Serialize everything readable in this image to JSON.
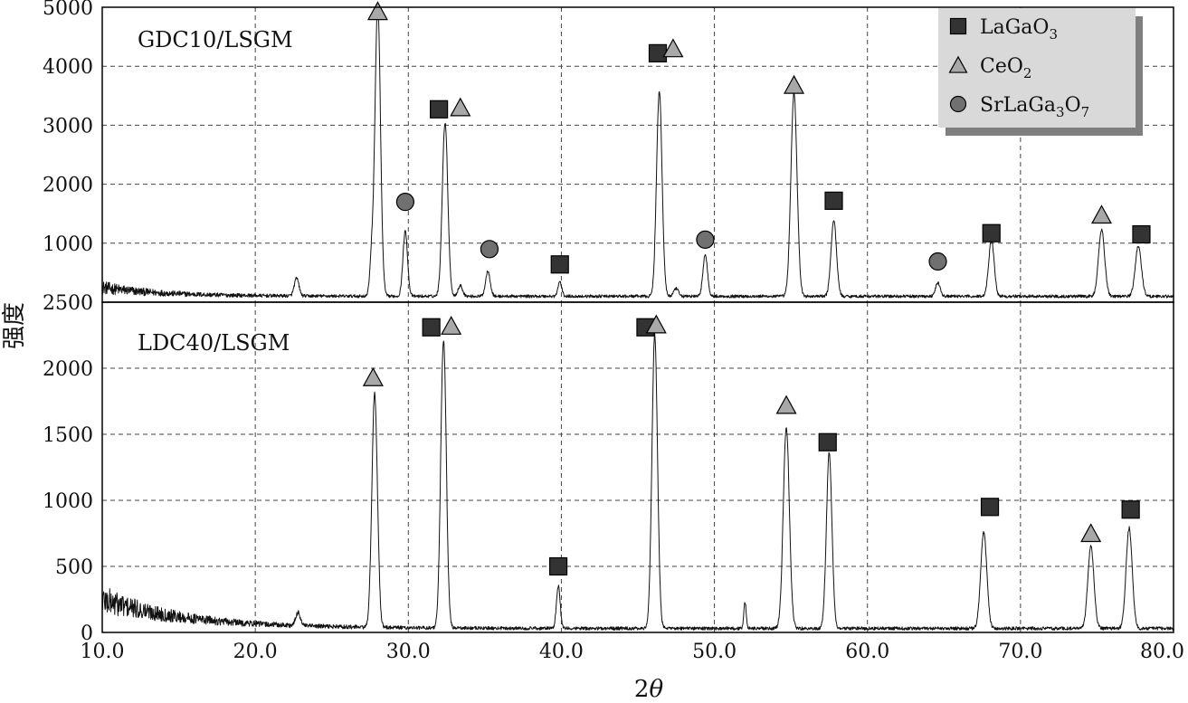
{
  "chart_data": [
    {
      "type": "line",
      "panel": "top",
      "title": "GDC10/LSGM",
      "ylabel": "强度",
      "xlabel": "2θ",
      "xlim": [
        10.0,
        80.0
      ],
      "ylim": [
        0,
        5000
      ],
      "yticks": [
        1000,
        2000,
        3000,
        4000,
        5000
      ],
      "ytick_labels": [
        "1000",
        "2000",
        "3000",
        "4000",
        "5000"
      ],
      "grid": true,
      "background_level": 100,
      "peaks": [
        {
          "x": 22.7,
          "y": 300,
          "w": 0.15
        },
        {
          "x": 27.6,
          "y": 600,
          "w": 0.12
        },
        {
          "x": 28.0,
          "y": 4950,
          "w": 0.18
        },
        {
          "x": 29.8,
          "y": 1100,
          "w": 0.15
        },
        {
          "x": 32.4,
          "y": 2950,
          "w": 0.18
        },
        {
          "x": 33.4,
          "y": 180,
          "w": 0.15
        },
        {
          "x": 35.2,
          "y": 430,
          "w": 0.15
        },
        {
          "x": 39.9,
          "y": 250,
          "w": 0.12
        },
        {
          "x": 46.4,
          "y": 3480,
          "w": 0.18
        },
        {
          "x": 47.5,
          "y": 130,
          "w": 0.15
        },
        {
          "x": 49.4,
          "y": 700,
          "w": 0.15
        },
        {
          "x": 55.2,
          "y": 3450,
          "w": 0.2
        },
        {
          "x": 57.8,
          "y": 1280,
          "w": 0.18
        },
        {
          "x": 64.6,
          "y": 230,
          "w": 0.15
        },
        {
          "x": 68.1,
          "y": 950,
          "w": 0.18
        },
        {
          "x": 75.3,
          "y": 1130,
          "w": 0.2
        },
        {
          "x": 77.7,
          "y": 850,
          "w": 0.2
        }
      ],
      "markers": [
        {
          "phase": "CeO2",
          "x": 28.0,
          "y": 4930
        },
        {
          "phase": "SrLaGa3O7",
          "x": 29.8,
          "y": 1700
        },
        {
          "phase": "LaGaO3",
          "x": 32.0,
          "y": 3270
        },
        {
          "phase": "CeO2",
          "x": 33.4,
          "y": 3300
        },
        {
          "phase": "SrLaGa3O7",
          "x": 35.3,
          "y": 900
        },
        {
          "phase": "LaGaO3",
          "x": 39.9,
          "y": 640
        },
        {
          "phase": "LaGaO3",
          "x": 46.3,
          "y": 4220
        },
        {
          "phase": "CeO2",
          "x": 47.3,
          "y": 4300
        },
        {
          "phase": "SrLaGa3O7",
          "x": 49.4,
          "y": 1060
        },
        {
          "phase": "CeO2",
          "x": 55.2,
          "y": 3680
        },
        {
          "phase": "LaGaO3",
          "x": 57.8,
          "y": 1720
        },
        {
          "phase": "SrLaGa3O7",
          "x": 64.6,
          "y": 690
        },
        {
          "phase": "LaGaO3",
          "x": 68.1,
          "y": 1170
        },
        {
          "phase": "CeO2",
          "x": 75.3,
          "y": 1480
        },
        {
          "phase": "LaGaO3",
          "x": 77.9,
          "y": 1150
        }
      ]
    },
    {
      "type": "line",
      "panel": "bottom",
      "title": "LDC40/LSGM",
      "ylabel": "强度",
      "xlabel": "2θ",
      "xlim": [
        10.0,
        80.0
      ],
      "ylim": [
        0,
        2500
      ],
      "yticks": [
        0,
        500,
        1000,
        1500,
        2000,
        2500
      ],
      "ytick_labels": [
        "0",
        "500",
        "1000",
        "1500",
        "2000",
        "2500"
      ],
      "grid": true,
      "background_level": 30,
      "peaks": [
        {
          "x": 22.8,
          "y": 100,
          "w": 0.15
        },
        {
          "x": 27.8,
          "y": 1770,
          "w": 0.18
        },
        {
          "x": 32.3,
          "y": 2180,
          "w": 0.18
        },
        {
          "x": 39.8,
          "y": 320,
          "w": 0.12
        },
        {
          "x": 46.1,
          "y": 2230,
          "w": 0.18
        },
        {
          "x": 52.0,
          "y": 200,
          "w": 0.08
        },
        {
          "x": 54.7,
          "y": 1520,
          "w": 0.2
        },
        {
          "x": 57.5,
          "y": 1330,
          "w": 0.18
        },
        {
          "x": 67.6,
          "y": 730,
          "w": 0.2
        },
        {
          "x": 74.6,
          "y": 620,
          "w": 0.2
        },
        {
          "x": 77.1,
          "y": 760,
          "w": 0.2
        }
      ],
      "markers": [
        {
          "phase": "CeO2",
          "x": 27.7,
          "y": 1930
        },
        {
          "phase": "LaGaO3",
          "x": 31.5,
          "y": 2310
        },
        {
          "phase": "CeO2",
          "x": 32.8,
          "y": 2320
        },
        {
          "phase": "LaGaO3",
          "x": 39.8,
          "y": 500
        },
        {
          "phase": "LaGaO3",
          "x": 45.5,
          "y": 2310
        },
        {
          "phase": "CeO2",
          "x": 46.2,
          "y": 2330
        },
        {
          "phase": "CeO2",
          "x": 54.7,
          "y": 1720
        },
        {
          "phase": "LaGaO3",
          "x": 57.4,
          "y": 1440
        },
        {
          "phase": "LaGaO3",
          "x": 68.0,
          "y": 950
        },
        {
          "phase": "CeO2",
          "x": 74.6,
          "y": 750
        },
        {
          "phase": "LaGaO3",
          "x": 77.2,
          "y": 930
        }
      ]
    }
  ],
  "xticks": [
    10.0,
    20.0,
    30.0,
    40.0,
    50.0,
    60.0,
    70.0,
    80.0
  ],
  "xtick_labels": [
    "10.0",
    "20.0",
    "30.0",
    "40.0",
    "50.0",
    "60.0",
    "70.0",
    "80.0"
  ],
  "legend": {
    "placement": "top-right",
    "entries": [
      {
        "phase": "LaGaO3",
        "marker": "square",
        "color": "#333333",
        "label": "LaGaO",
        "sub": "3",
        "suffix": "",
        "sub2": ""
      },
      {
        "phase": "CeO2",
        "marker": "triangle",
        "color": "#a8a8a8",
        "label": "CeO",
        "sub": "2",
        "suffix": "",
        "sub2": ""
      },
      {
        "phase": "SrLaGa3O7",
        "marker": "circle",
        "color": "#707070",
        "label": "SrLaGa",
        "sub": "3",
        "suffix": "O",
        "sub2": "7"
      }
    ]
  },
  "axis_labels": {
    "x_text": "2",
    "x_symbol": "θ",
    "y": "强度"
  },
  "colors": {
    "square": "#333333",
    "triangle": "#a8a8a8",
    "circle": "#707070",
    "legend_bg": "#d9d9d9",
    "legend_shadow": "#7f7f7f"
  }
}
